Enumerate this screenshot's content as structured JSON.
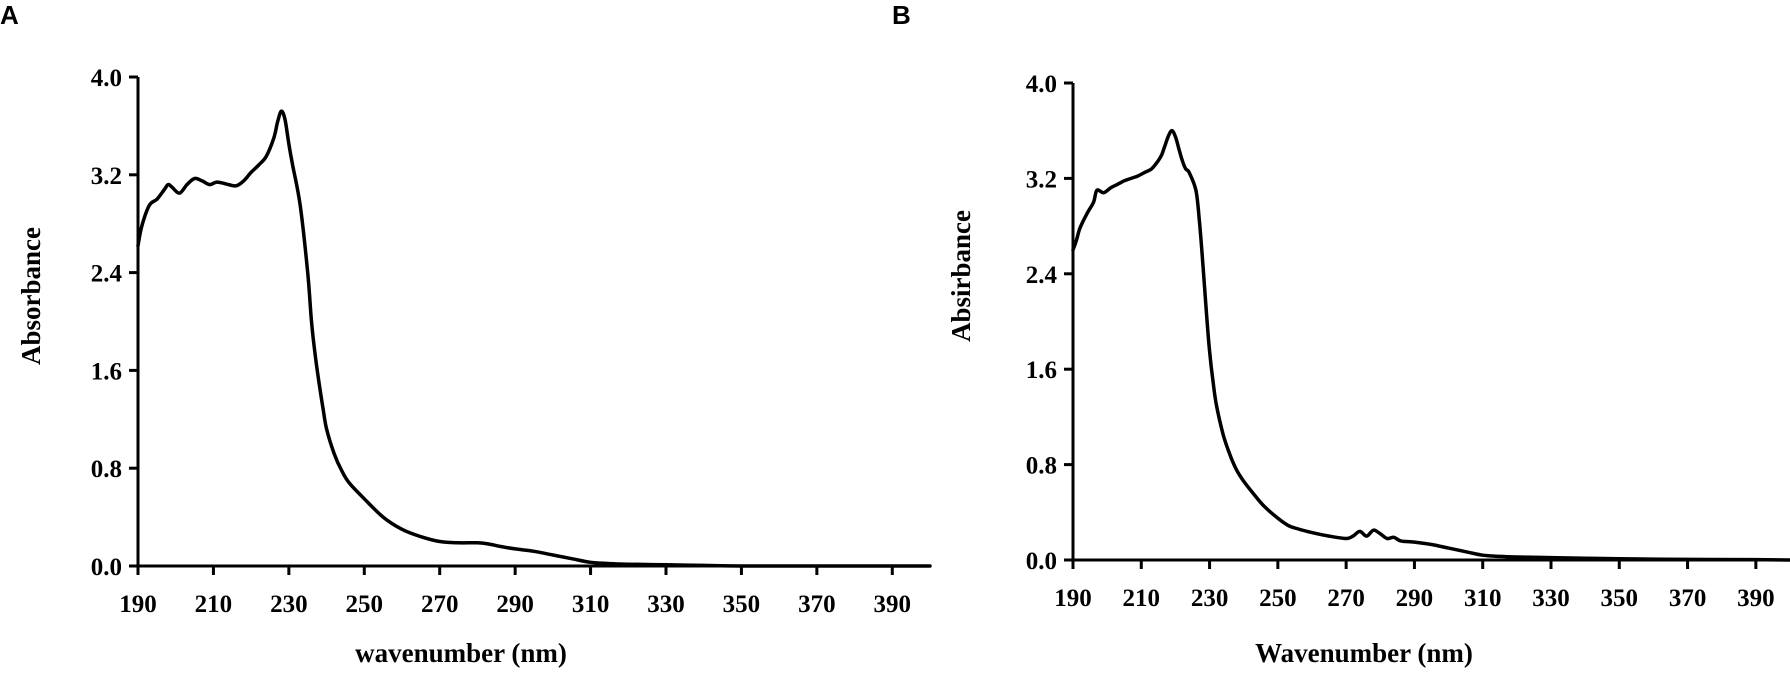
{
  "chart_data": [
    {
      "type": "line",
      "panel_label": "A",
      "title": "",
      "xlabel": "wavenumber (nm)",
      "ylabel": "Absorbance",
      "xlim": [
        190,
        400
      ],
      "ylim": [
        0,
        4
      ],
      "xticks": [
        190,
        210,
        230,
        250,
        270,
        290,
        310,
        330,
        350,
        370,
        390
      ],
      "yticks": [
        "0.0",
        "0.8",
        "1.6",
        "2.4",
        "3.2",
        "4.0"
      ],
      "grid": false,
      "legend": "none",
      "series": [
        {
          "x": [
            190,
            191,
            193,
            195,
            197,
            198,
            199,
            201,
            203,
            205,
            207,
            209,
            211,
            214,
            216,
            218,
            220,
            222,
            224,
            226,
            227,
            228,
            229,
            230,
            231,
            233,
            235,
            236,
            237,
            238,
            239,
            240,
            242,
            244,
            246,
            250,
            255,
            260,
            265,
            270,
            275,
            280,
            283,
            286,
            290,
            295,
            300,
            305,
            310,
            315,
            320,
            330,
            340,
            350,
            370,
            390,
            400
          ],
          "y": [
            2.62,
            2.78,
            2.95,
            3.0,
            3.08,
            3.12,
            3.1,
            3.05,
            3.12,
            3.17,
            3.15,
            3.12,
            3.14,
            3.12,
            3.11,
            3.15,
            3.22,
            3.28,
            3.35,
            3.5,
            3.63,
            3.72,
            3.65,
            3.45,
            3.28,
            2.95,
            2.4,
            2.0,
            1.72,
            1.5,
            1.3,
            1.12,
            0.92,
            0.78,
            0.68,
            0.55,
            0.4,
            0.3,
            0.24,
            0.2,
            0.19,
            0.19,
            0.18,
            0.16,
            0.14,
            0.12,
            0.09,
            0.06,
            0.03,
            0.02,
            0.015,
            0.01,
            0.005,
            0.0,
            0.0,
            0.0,
            0.0
          ]
        }
      ]
    },
    {
      "type": "line",
      "panel_label": "B",
      "title": "",
      "xlabel": "Wavenumber  (nm)",
      "ylabel": "Absirbance",
      "xlim": [
        190,
        400
      ],
      "ylim": [
        0,
        4
      ],
      "xticks": [
        190,
        210,
        230,
        250,
        270,
        290,
        310,
        330,
        350,
        370,
        390
      ],
      "yticks": [
        "0.0",
        "0.8",
        "1.6",
        "2.4",
        "3.2",
        "4.0"
      ],
      "grid": false,
      "legend": "none",
      "series": [
        {
          "x": [
            190,
            191,
            192,
            194,
            196,
            197,
            199,
            201,
            203,
            205,
            207,
            209,
            211,
            213,
            215,
            216,
            217,
            218,
            219,
            220,
            221,
            222,
            223,
            224,
            226,
            227,
            228,
            229,
            230,
            231,
            232,
            234,
            236,
            238,
            240,
            243,
            246,
            250,
            253,
            256,
            260,
            265,
            270,
            272,
            274,
            276,
            278,
            280,
            282,
            284,
            286,
            290,
            295,
            300,
            305,
            310,
            315,
            320,
            330,
            340,
            350,
            370,
            390,
            400
          ],
          "y": [
            2.6,
            2.68,
            2.78,
            2.9,
            3.0,
            3.1,
            3.08,
            3.12,
            3.15,
            3.18,
            3.2,
            3.22,
            3.25,
            3.28,
            3.35,
            3.4,
            3.48,
            3.56,
            3.6,
            3.55,
            3.45,
            3.35,
            3.28,
            3.25,
            3.1,
            2.85,
            2.5,
            2.1,
            1.75,
            1.5,
            1.3,
            1.05,
            0.88,
            0.75,
            0.66,
            0.55,
            0.45,
            0.35,
            0.29,
            0.26,
            0.23,
            0.2,
            0.18,
            0.2,
            0.24,
            0.2,
            0.25,
            0.22,
            0.18,
            0.19,
            0.16,
            0.15,
            0.13,
            0.1,
            0.07,
            0.04,
            0.03,
            0.025,
            0.02,
            0.015,
            0.01,
            0.005,
            0.003,
            0.0
          ]
        }
      ]
    }
  ]
}
